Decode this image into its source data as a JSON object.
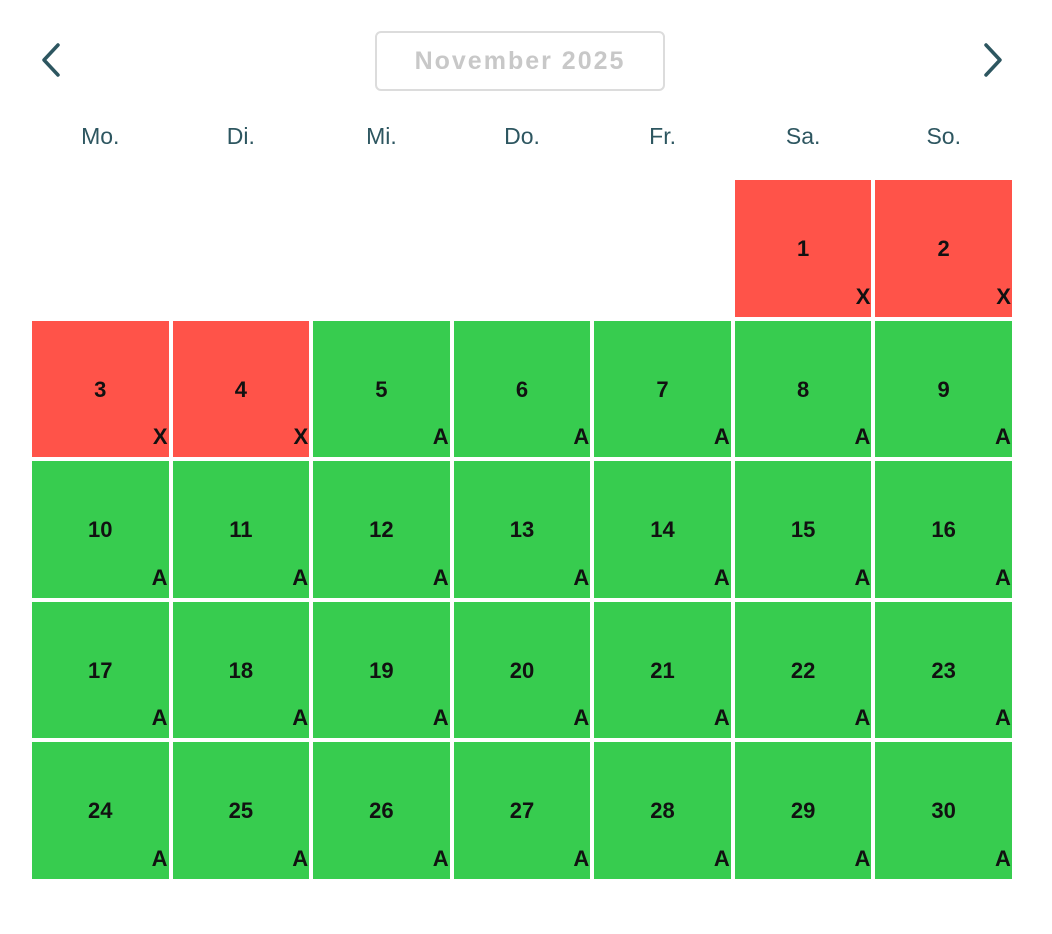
{
  "header": {
    "month_label": "November 2025",
    "prev_icon": "chevron-left-icon",
    "next_icon": "chevron-right-icon",
    "nav_color": "#2d5660"
  },
  "weekdays": [
    "Mo.",
    "Di.",
    "Mi.",
    "Do.",
    "Fr.",
    "Sa.",
    "So."
  ],
  "colors": {
    "unavailable": "#ff5349",
    "available": "#37cc4f"
  },
  "leading_empty_days": 5,
  "days": [
    {
      "day": "1",
      "status": "X"
    },
    {
      "day": "2",
      "status": "X"
    },
    {
      "day": "3",
      "status": "X"
    },
    {
      "day": "4",
      "status": "X"
    },
    {
      "day": "5",
      "status": "A"
    },
    {
      "day": "6",
      "status": "A"
    },
    {
      "day": "7",
      "status": "A"
    },
    {
      "day": "8",
      "status": "A"
    },
    {
      "day": "9",
      "status": "A"
    },
    {
      "day": "10",
      "status": "A"
    },
    {
      "day": "11",
      "status": "A"
    },
    {
      "day": "12",
      "status": "A"
    },
    {
      "day": "13",
      "status": "A"
    },
    {
      "day": "14",
      "status": "A"
    },
    {
      "day": "15",
      "status": "A"
    },
    {
      "day": "16",
      "status": "A"
    },
    {
      "day": "17",
      "status": "A"
    },
    {
      "day": "18",
      "status": "A"
    },
    {
      "day": "19",
      "status": "A"
    },
    {
      "day": "20",
      "status": "A"
    },
    {
      "day": "21",
      "status": "A"
    },
    {
      "day": "22",
      "status": "A"
    },
    {
      "day": "23",
      "status": "A"
    },
    {
      "day": "24",
      "status": "A"
    },
    {
      "day": "25",
      "status": "A"
    },
    {
      "day": "26",
      "status": "A"
    },
    {
      "day": "27",
      "status": "A"
    },
    {
      "day": "28",
      "status": "A"
    },
    {
      "day": "29",
      "status": "A"
    },
    {
      "day": "30",
      "status": "A"
    }
  ]
}
